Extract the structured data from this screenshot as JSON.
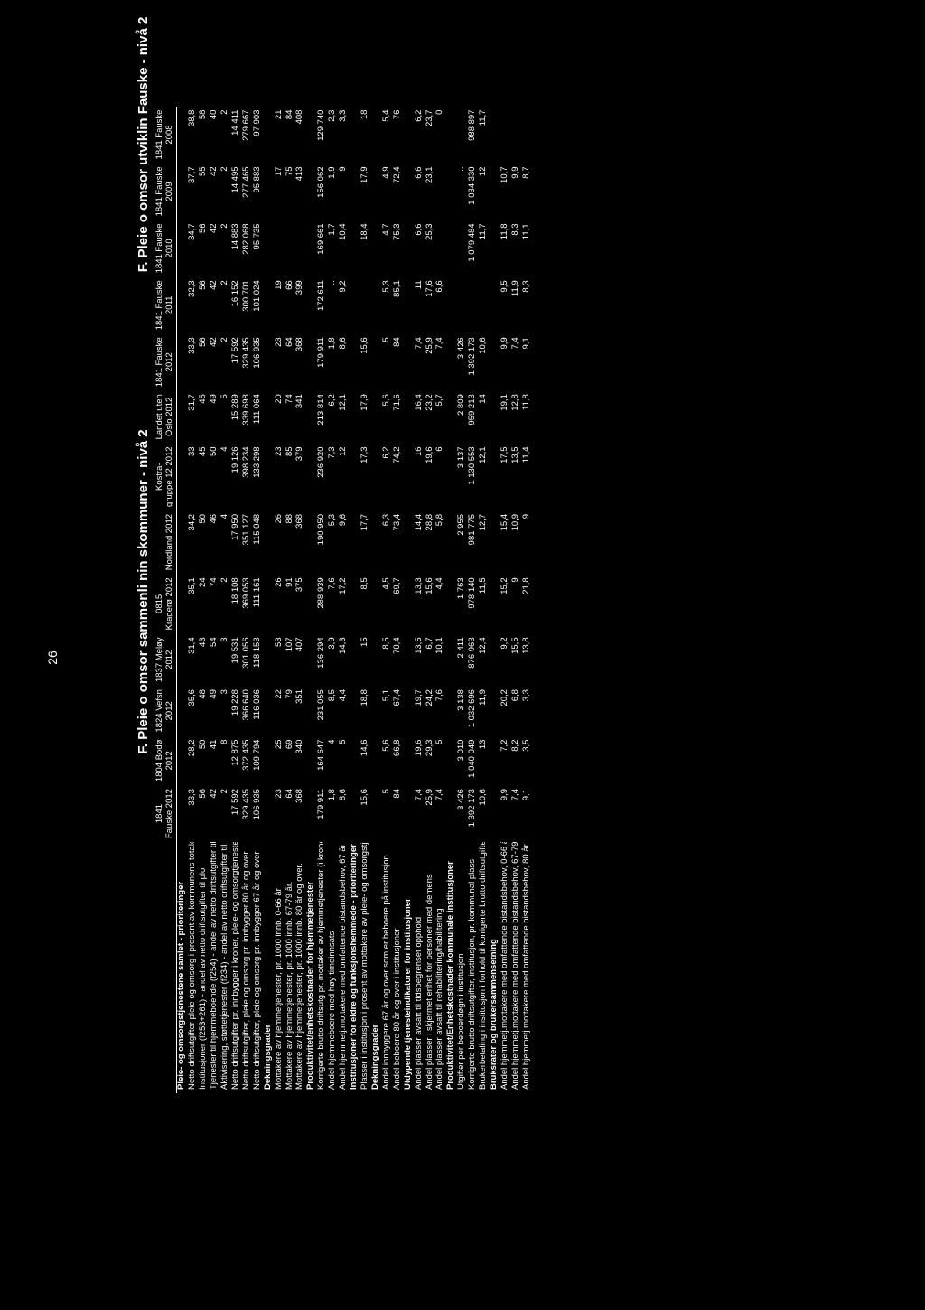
{
  "pageNumber": "26",
  "titleLeft": "F. Pleie o omsor sammenli nin skommuner - nivå 2",
  "titleRight": "F. Pleie o omsor utviklin Fauske - nivå 2",
  "columns": [
    {
      "h1": "1841",
      "h2": "Fauske 2012"
    },
    {
      "h1": "1804 Bodø",
      "h2": "2012"
    },
    {
      "h1": "1824 Vefsn",
      "h2": "2012"
    },
    {
      "h1": "1837 Meløy",
      "h2": "2012"
    },
    {
      "h1": "0815",
      "h2": "Kragerø 2012"
    },
    {
      "h1": "",
      "h2": "Nordland 2012"
    },
    {
      "h1": "Kostra-",
      "h2": "gruppe 12 2012"
    },
    {
      "h1": "Landet uten",
      "h2": "Oslo 2012"
    },
    {
      "h1": "1841 Fauske",
      "h2": "2012"
    },
    {
      "h1": "1841 Fauske",
      "h2": "2011"
    },
    {
      "h1": "1841 Fauske",
      "h2": "2010"
    },
    {
      "h1": "1841 Fauske",
      "h2": "2009"
    },
    {
      "h1": "1841 Fauske",
      "h2": "2008"
    }
  ],
  "rows": [
    {
      "section": true,
      "label": "Pleie- og omsorgstjenestene samlet - prioriteringer",
      "v": [
        "",
        "",
        "",
        "",
        "",
        "",
        "",
        "",
        "",
        "",
        "",
        "",
        ""
      ]
    },
    {
      "label": "Netto driftsutgifter pleie og omsorg i prosent av kommunens totale netto driftsutgifter",
      "v": [
        "33,3",
        "28,2",
        "35,6",
        "31,4",
        "35,1",
        "34,2",
        "33",
        "31,7",
        "33,3",
        "32,3",
        "34,7",
        "37,7",
        "38,8"
      ]
    },
    {
      "label": "Institusjoner (f253+261) - andel av netto driftsutgifter til plo",
      "v": [
        "56",
        "50",
        "48",
        "43",
        "24",
        "50",
        "45",
        "45",
        "56",
        "56",
        "56",
        "55",
        "58"
      ]
    },
    {
      "label": "Tjenester til hjemmeboende (f254) - andel av netto driftsutgifter til plo",
      "v": [
        "42",
        "41",
        "49",
        "54",
        "74",
        "46",
        "50",
        "49",
        "42",
        "42",
        "42",
        "42",
        "40"
      ]
    },
    {
      "label": "Aktivisering, støttetjenester (f234) - andel av netto driftsutgifter til plo",
      "v": [
        "2",
        "8",
        "3",
        "3",
        "2",
        "4",
        "4",
        "5",
        "2",
        "2",
        "2",
        "2",
        "2"
      ]
    },
    {
      "label": "Netto driftsutgifter pr. innbygger i kroner, pleie- og omsorgtjenesten",
      "v": [
        "17 592",
        "12 875",
        "19 228",
        "19 531",
        "18 108",
        "17 950",
        "19 126",
        "15 289",
        "17 592",
        "16 152",
        "14 883",
        "14 495",
        "14 411"
      ]
    },
    {
      "label": "Netto driftsutgifter, pleie og omsorg pr. innbygger 80 år og over",
      "v": [
        "329 435",
        "372 435",
        "366 640",
        "301 056",
        "369 053",
        "351 127",
        "398 234",
        "339 698",
        "329 435",
        "300 701",
        "282 068",
        "277 465",
        "279 667"
      ]
    },
    {
      "label": "Netto driftsutgifter, pleie og omsorg pr. innbygger 67 år og over",
      "v": [
        "106 935",
        "109 794",
        "116 036",
        "118 153",
        "111 161",
        "115 048",
        "133 298",
        "111 064",
        "106 935",
        "101 024",
        "95 735",
        "95 883",
        "97 903"
      ]
    },
    {
      "section": true,
      "label": "Dekningsgrader",
      "v": [
        "",
        "",
        "",
        "",
        "",
        "",
        "",
        "",
        "",
        "",
        "",
        "",
        ""
      ]
    },
    {
      "label": "Mottakere av hjemmetjenester, pr. 1000 innb. 0-66 år",
      "v": [
        "23",
        "25",
        "22",
        "53",
        "26",
        "26",
        "23",
        "20",
        "23",
        "19",
        "",
        "17",
        "21"
      ]
    },
    {
      "label": "Mottakere av hjemmetjenester, pr. 1000 innb. 67-79 år.",
      "v": [
        "64",
        "69",
        "79",
        "107",
        "91",
        "88",
        "85",
        "74",
        "64",
        "66",
        "",
        "75",
        "84"
      ]
    },
    {
      "label": "Mottakere av hjemmetjenester, pr. 1000 innb. 80 år og over.",
      "v": [
        "368",
        "340",
        "351",
        "407",
        "375",
        "368",
        "379",
        "341",
        "368",
        "399",
        "",
        "413",
        "408"
      ]
    },
    {
      "section": true,
      "label": "Produktivitet/enhetskostnader for hjemmetjenester",
      "v": [
        "",
        "",
        "",
        "",
        "",
        "",
        "",
        "",
        "",
        "",
        "",
        "",
        ""
      ]
    },
    {
      "label": "Korrigerte brutto driftsutg pr. mottaker av hjemmetjenester (i kroner)",
      "v": [
        "179 911",
        "164 647",
        "231 055",
        "136 294",
        "288 939",
        "190 950",
        "236 920",
        "213 814",
        "179 911",
        "172 611",
        "169 661",
        "156 062",
        "129 740"
      ]
    },
    {
      "label": "Andel hjemmeboere med høy timeinnsats",
      "v": [
        "1,8",
        "4",
        "8,5",
        "3,9",
        "7,6",
        "5,3",
        "7,3",
        "6,2",
        "1,8",
        "..",
        "1,7",
        "1,9",
        "2,3"
      ]
    },
    {
      "label": "Andel hjemmetj.mottakere med omfattende bistandsbehov, 67 år og over",
      "v": [
        "8,6",
        "5",
        "4,4",
        "14,3",
        "17,2",
        "9,6",
        "12",
        "12,1",
        "8,6",
        "9,2",
        "10,4",
        "9",
        "3,3"
      ]
    },
    {
      "section": true,
      "label": "Institusjoner for eldre og funksjonshemmede - prioriteringer",
      "v": [
        "",
        "",
        "",
        "",
        "",
        "",
        "",
        "",
        "",
        "",
        "",
        "",
        ""
      ]
    },
    {
      "label": "Plasser i institusjon i prosent av mottakere av pleie- og omsorgstjenester",
      "v": [
        "15,6",
        "14,6",
        "18,8",
        "15",
        "8,5",
        "17,7",
        "17,3",
        "17,9",
        "15,6",
        "",
        "18,4",
        "17,9",
        "18"
      ]
    },
    {
      "section": true,
      "label": "Dekningsgrader",
      "v": [
        "",
        "",
        "",
        "",
        "",
        "",
        "",
        "",
        "",
        "",
        "",
        "",
        ""
      ]
    },
    {
      "label": "Andel innbyggere 67 år og over som er beboere på institusjon",
      "v": [
        "5",
        "5,6",
        "5,1",
        "8,5",
        "4,5",
        "6,3",
        "6,2",
        "5,6",
        "5",
        "5,3",
        "4,7",
        "4,9",
        "5,4"
      ]
    },
    {
      "label": "Andel beboere 80 år og over i institusjoner",
      "v": [
        "84",
        "66,8",
        "67,4",
        "70,4",
        "69,7",
        "73,4",
        "74,2",
        "71,6",
        "84",
        "85,1",
        "75,3",
        "72,4",
        "76"
      ]
    },
    {
      "section": true,
      "label": "Utdypende tjenesteindikatorer for institusjoner",
      "v": [
        "",
        "",
        "",
        "",
        "",
        "",
        "",
        "",
        "",
        "",
        "",
        "",
        ""
      ]
    },
    {
      "label": "Andel plasser avsatt til tidsbegrenset opphold",
      "v": [
        "7,4",
        "19,6",
        "19,7",
        "13,5",
        "13,3",
        "14,4",
        "16",
        "16,4",
        "7,4",
        "11",
        "6,6",
        "6,6",
        "6,2"
      ]
    },
    {
      "label": "Andel plasser i skjermet enhet for personer med demens",
      "v": [
        "25,9",
        "29,3",
        "24,2",
        "6,7",
        "15,6",
        "28,8",
        "19,6",
        "23,2",
        "25,9",
        "17,6",
        "25,3",
        "23,1",
        "23,7"
      ]
    },
    {
      "label": "Andel plasser avsatt til rehabilitering/habilitering",
      "v": [
        "7,4",
        "5",
        "7,6",
        "10,1",
        "4,4",
        "5,8",
        "6",
        "5,7",
        "7,4",
        "6,6",
        "",
        "",
        "0"
      ]
    },
    {
      "section": true,
      "label": "Produktivitet/Enhetskostnader kommunale institusjoner",
      "v": [
        "",
        "",
        "",
        "",
        "",
        "",
        "",
        "",
        "",
        "",
        "",
        "",
        ""
      ]
    },
    {
      "label": "Utgifter per beboerdøgn i institusjon",
      "v": [
        "3 426",
        "3 010",
        "3 138",
        "2 411",
        "1 763",
        "2 955",
        "3 137",
        "2 809",
        "3 426",
        "",
        "",
        "..",
        ""
      ]
    },
    {
      "label": "Korrigerte brutto driftsutgifter, institusjon, pr. kommunal plass",
      "v": [
        "1 392 173",
        "1 040 049",
        "1 032 696",
        "876 963",
        "978 140",
        "981 775",
        "1 130 553",
        "959 213",
        "1 392 173",
        "",
        "1 079 484",
        "1 034 330",
        "988 897"
      ]
    },
    {
      "label": "Brukerbetaling i institusjon i forhold til korrigerte brutto driftsutgifter",
      "v": [
        "10,6",
        "13",
        "11,9",
        "12,4",
        "11,5",
        "12,7",
        "12,1",
        "14",
        "10,6",
        "",
        "11,7",
        "12",
        "11,7"
      ]
    },
    {
      "section": true,
      "label": "Bruksrater og brukersammensetning",
      "v": [
        "",
        "",
        "",
        "",
        "",
        "",
        "",
        "",
        "",
        "",
        "",
        "",
        ""
      ]
    },
    {
      "label": "Andel hjemmetj.mottakere med omfattende bistandsbehov, 0-66 år",
      "v": [
        "9,9",
        "7,2",
        "20,2",
        "9,2",
        "15,2",
        "15,4",
        "17,5",
        "19,1",
        "9,9",
        "9,5",
        "11,8",
        "10,7",
        ""
      ]
    },
    {
      "label": "Andel hjemmetj.mottakere med omfattende bistandsbehov, 67-79 år",
      "v": [
        "7,4",
        "8,2",
        "6,8",
        "15,5",
        "9",
        "10,9",
        "13,5",
        "12,8",
        "7,4",
        "11,9",
        "8,3",
        "9,9",
        ""
      ]
    },
    {
      "label": "Andel hjemmetj.mottakere med omfattende bistandsbehov, 80 år og over",
      "v": [
        "9,1",
        "3,5",
        "3,3",
        "13,8",
        "21,8",
        "9",
        "11,4",
        "11,8",
        "9,1",
        "8,3",
        "11,1",
        "8,7",
        ""
      ]
    }
  ]
}
